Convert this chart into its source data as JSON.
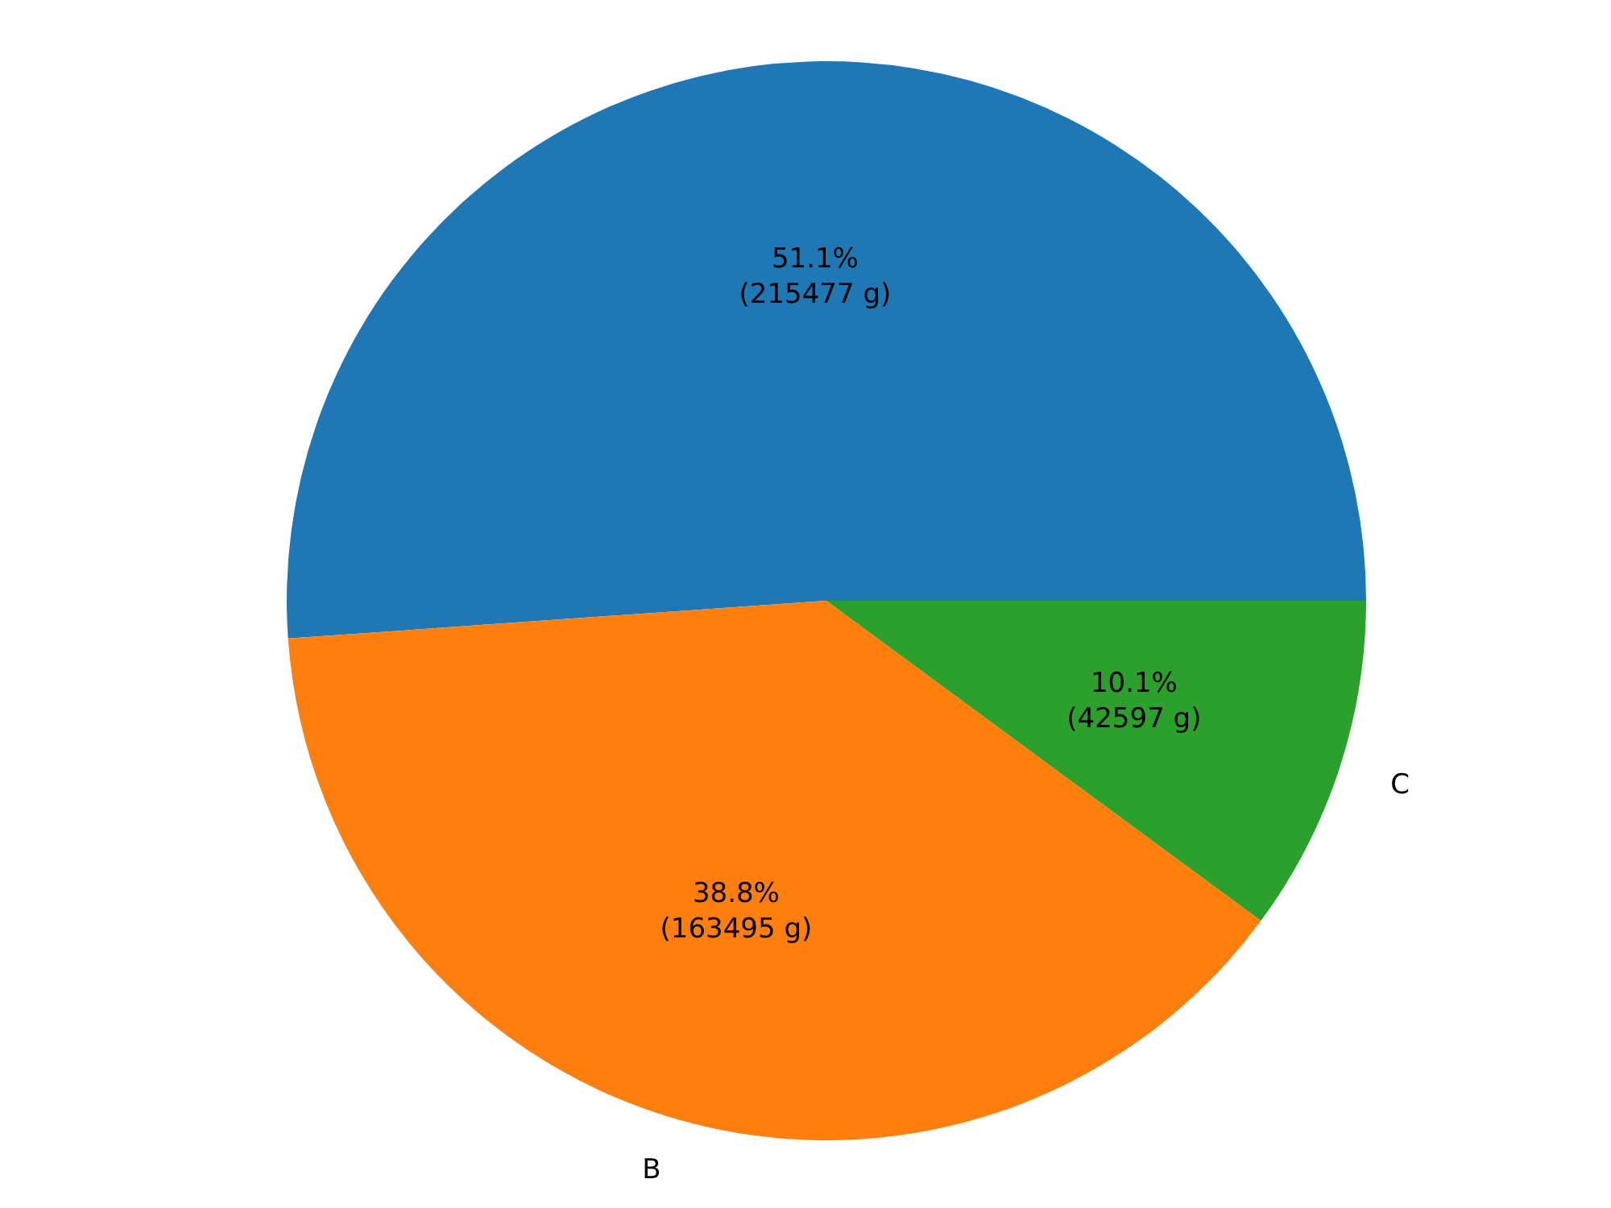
{
  "chart_data": {
    "type": "pie",
    "categories": [
      null,
      "B",
      "C"
    ],
    "values": [
      215477,
      163495,
      42597
    ],
    "colors": [
      "#1f77b4",
      "#ff7f0e",
      "#2ca02c"
    ],
    "value_labels": [
      "51.1%\n(215477 g)",
      "38.8%\n(163495 g)",
      "10.1%\n(42597 g)"
    ]
  }
}
